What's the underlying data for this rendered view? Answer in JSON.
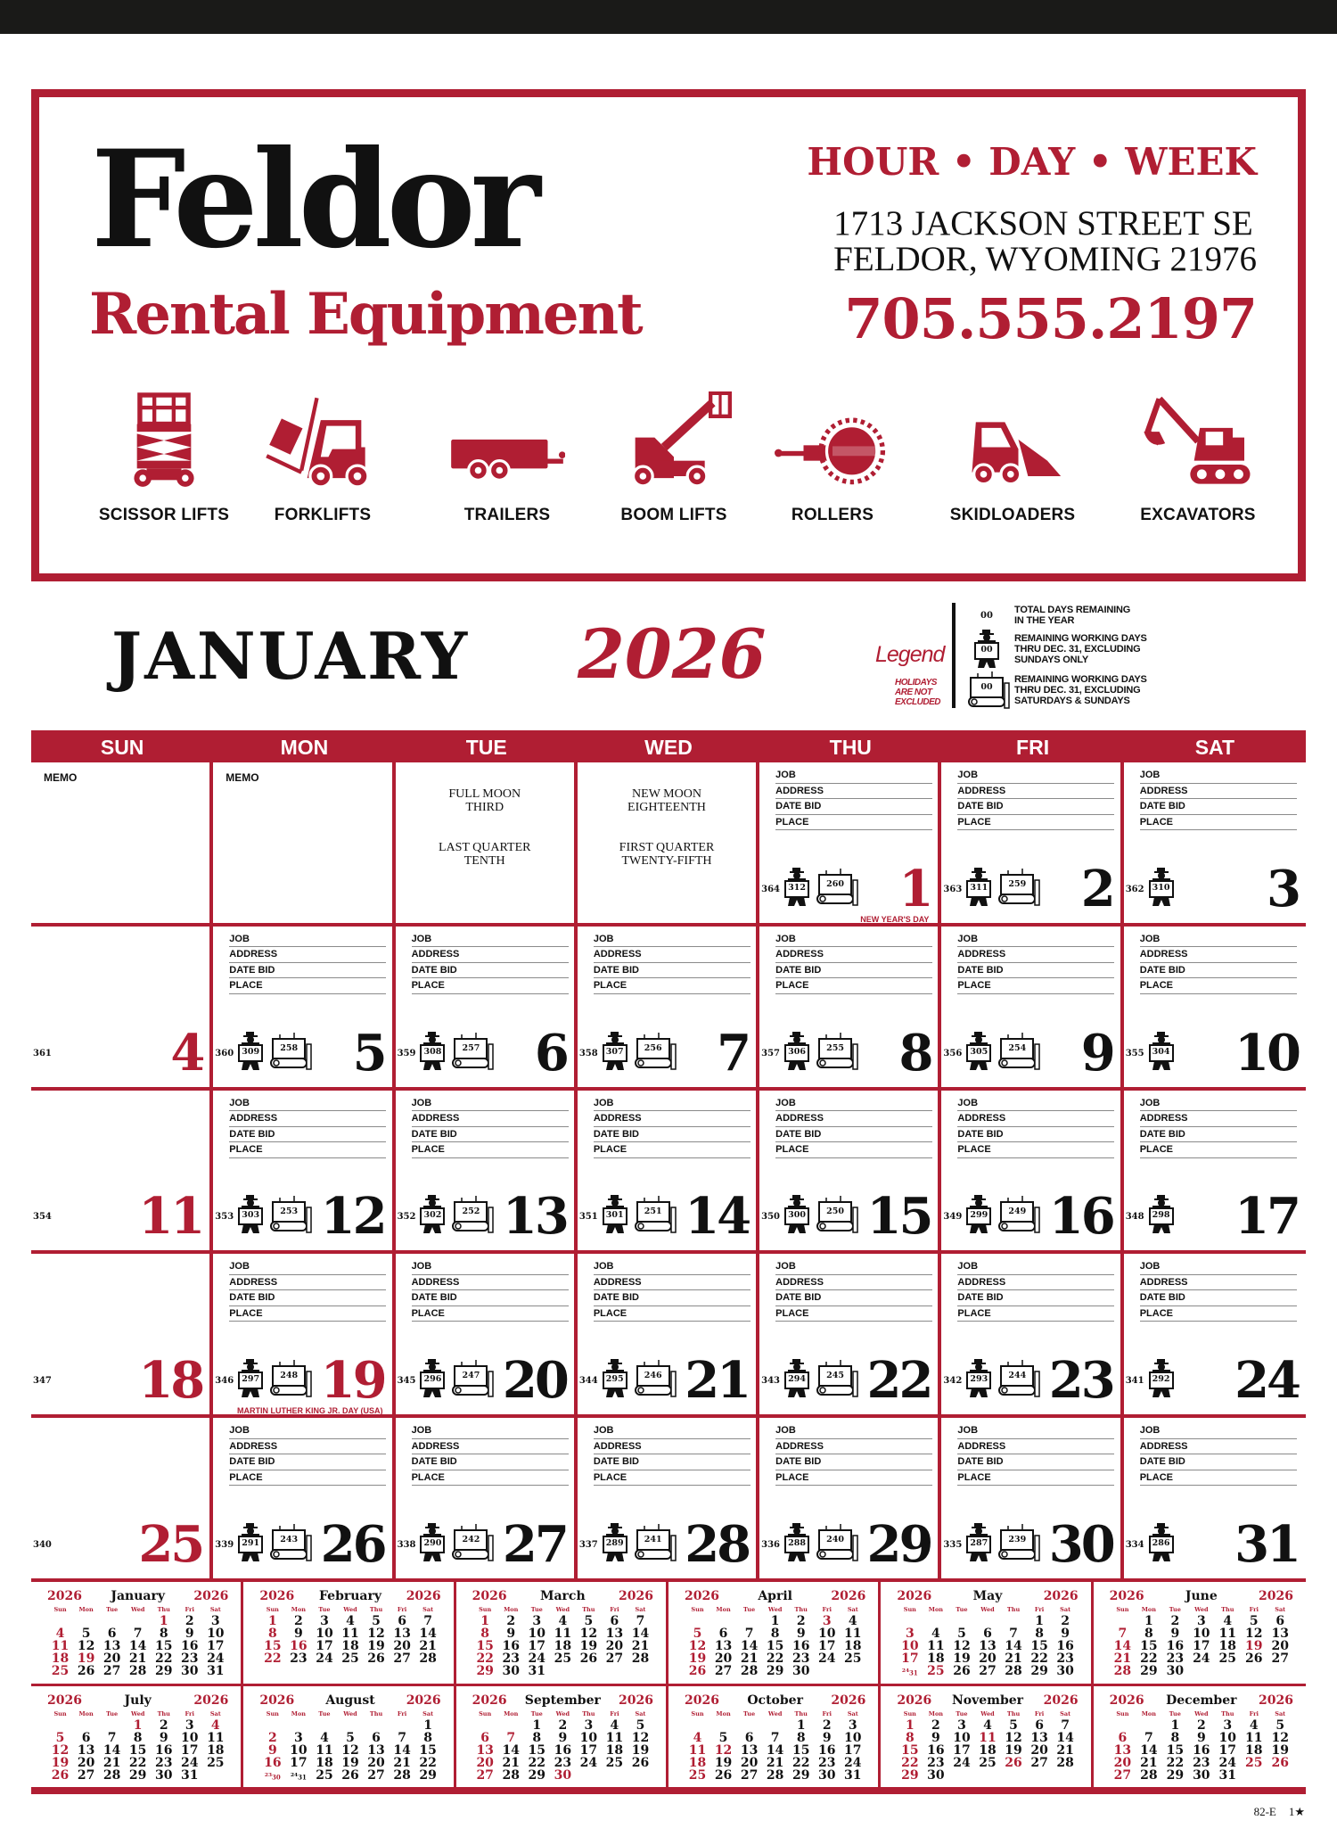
{
  "header": {
    "logo": "Feldor",
    "subtitle": "Rental Equipment",
    "tagline": "HOUR • DAY • WEEK",
    "address_line1": "1713 JACKSON STREET SE",
    "address_line2": "FELDOR, WYOMING 21976",
    "phone": "705.555.2197",
    "brand_color": "#b01e33",
    "equipment": [
      {
        "label": "SCISSOR LIFTS",
        "icon": "scissor-lift-icon"
      },
      {
        "label": "FORKLIFTS",
        "icon": "forklift-icon"
      },
      {
        "label": "TRAILERS",
        "icon": "trailer-icon"
      },
      {
        "label": "BOOM LIFTS",
        "icon": "boom-lift-icon"
      },
      {
        "label": "ROLLERS",
        "icon": "roller-icon"
      },
      {
        "label": "SKIDLOADERS",
        "icon": "skidloader-icon"
      },
      {
        "label": "EXCAVATORS",
        "icon": "excavator-icon"
      }
    ]
  },
  "title": {
    "month": "JANUARY",
    "year": "2026"
  },
  "legend": {
    "title": "Legend",
    "note": [
      "HOLIDAYS",
      "ARE NOT",
      "EXCLUDED"
    ],
    "sample": "00",
    "items": [
      [
        "TOTAL DAYS REMAINING",
        "IN THE YEAR"
      ],
      [
        "REMAINING WORKING DAYS",
        "THRU DEC. 31, EXCLUDING",
        "SUNDAYS ONLY"
      ],
      [
        "REMAINING WORKING DAYS",
        "THRU DEC. 31, EXCLUDING",
        "SATURDAYS & SUNDAYS"
      ]
    ]
  },
  "calendar": {
    "weekdays": [
      "SUN",
      "MON",
      "TUE",
      "WED",
      "THU",
      "FRI",
      "SAT"
    ],
    "job_fields": [
      "JOB",
      "ADDRESS",
      "DATE BID",
      "PLACE"
    ],
    "memo_label": "MEMO",
    "cells": [
      {
        "type": "memo"
      },
      {
        "type": "memo"
      },
      {
        "type": "moon",
        "lines": [
          [
            "FULL MOON",
            "THIRD"
          ],
          [
            "LAST QUARTER",
            "TENTH"
          ]
        ]
      },
      {
        "type": "moon",
        "lines": [
          [
            "NEW MOON",
            "EIGHTEENTH"
          ],
          [
            "FIRST QUARTER",
            "TWENTY-FIFTH"
          ]
        ]
      },
      {
        "day": 1,
        "total": 364,
        "excl_sun": 312,
        "excl_weekend": 260,
        "red": true,
        "holiday": "NEW YEAR'S DAY"
      },
      {
        "day": 2,
        "total": 363,
        "excl_sun": 311,
        "excl_weekend": 259
      },
      {
        "day": 3,
        "total": 362,
        "excl_sun": 310
      },
      {
        "day": 4,
        "total": 361,
        "sunday": true
      },
      {
        "day": 5,
        "total": 360,
        "excl_sun": 309,
        "excl_weekend": 258
      },
      {
        "day": 6,
        "total": 359,
        "excl_sun": 308,
        "excl_weekend": 257
      },
      {
        "day": 7,
        "total": 358,
        "excl_sun": 307,
        "excl_weekend": 256
      },
      {
        "day": 8,
        "total": 357,
        "excl_sun": 306,
        "excl_weekend": 255
      },
      {
        "day": 9,
        "total": 356,
        "excl_sun": 305,
        "excl_weekend": 254
      },
      {
        "day": 10,
        "total": 355,
        "excl_sun": 304
      },
      {
        "day": 11,
        "total": 354,
        "sunday": true
      },
      {
        "day": 12,
        "total": 353,
        "excl_sun": 303,
        "excl_weekend": 253
      },
      {
        "day": 13,
        "total": 352,
        "excl_sun": 302,
        "excl_weekend": 252
      },
      {
        "day": 14,
        "total": 351,
        "excl_sun": 301,
        "excl_weekend": 251
      },
      {
        "day": 15,
        "total": 350,
        "excl_sun": 300,
        "excl_weekend": 250
      },
      {
        "day": 16,
        "total": 349,
        "excl_sun": 299,
        "excl_weekend": 249
      },
      {
        "day": 17,
        "total": 348,
        "excl_sun": 298
      },
      {
        "day": 18,
        "total": 347,
        "sunday": true
      },
      {
        "day": 19,
        "total": 346,
        "excl_sun": 297,
        "excl_weekend": 248,
        "red": true,
        "holiday": "MARTIN LUTHER KING JR. DAY (USA)"
      },
      {
        "day": 20,
        "total": 345,
        "excl_sun": 296,
        "excl_weekend": 247
      },
      {
        "day": 21,
        "total": 344,
        "excl_sun": 295,
        "excl_weekend": 246
      },
      {
        "day": 22,
        "total": 343,
        "excl_sun": 294,
        "excl_weekend": 245
      },
      {
        "day": 23,
        "total": 342,
        "excl_sun": 293,
        "excl_weekend": 244
      },
      {
        "day": 24,
        "total": 341,
        "excl_sun": 292
      },
      {
        "day": 25,
        "total": 340,
        "sunday": true
      },
      {
        "day": 26,
        "total": 339,
        "excl_sun": 291,
        "excl_weekend": 243
      },
      {
        "day": 27,
        "total": 338,
        "excl_sun": 290,
        "excl_weekend": 242
      },
      {
        "day": 28,
        "total": 337,
        "excl_sun": 289,
        "excl_weekend": 241
      },
      {
        "day": 29,
        "total": 336,
        "excl_sun": 288,
        "excl_weekend": 240
      },
      {
        "day": 30,
        "total": 335,
        "excl_sun": 287,
        "excl_weekend": 239
      },
      {
        "day": 31,
        "total": 334,
        "excl_sun": 286
      }
    ]
  },
  "mini_calendars": {
    "year": "2026",
    "weekdays": [
      "Sun",
      "Mon",
      "Tue",
      "Wed",
      "Thu",
      "Fri",
      "Sat"
    ],
    "months": [
      {
        "name": "January",
        "start": 4,
        "days": 31,
        "holidays": [
          1,
          19
        ]
      },
      {
        "name": "February",
        "start": 0,
        "days": 28,
        "holidays": [
          16
        ]
      },
      {
        "name": "March",
        "start": 0,
        "days": 31,
        "holidays": []
      },
      {
        "name": "April",
        "start": 3,
        "days": 30,
        "holidays": [
          3
        ]
      },
      {
        "name": "May",
        "start": 5,
        "days": 31,
        "holidays": [
          25
        ]
      },
      {
        "name": "June",
        "start": 1,
        "days": 30,
        "holidays": [
          19
        ]
      },
      {
        "name": "July",
        "start": 3,
        "days": 31,
        "holidays": [
          1,
          4
        ]
      },
      {
        "name": "August",
        "start": 6,
        "days": 31,
        "holidays": []
      },
      {
        "name": "September",
        "start": 2,
        "days": 30,
        "holidays": [
          7,
          30
        ]
      },
      {
        "name": "October",
        "start": 4,
        "days": 31,
        "holidays": [
          12
        ]
      },
      {
        "name": "November",
        "start": 0,
        "days": 30,
        "holidays": [
          11,
          26
        ]
      },
      {
        "name": "December",
        "start": 2,
        "days": 31,
        "holidays": [
          25,
          26
        ]
      }
    ]
  },
  "footer": {
    "code": "82-E",
    "mark": "1★"
  }
}
